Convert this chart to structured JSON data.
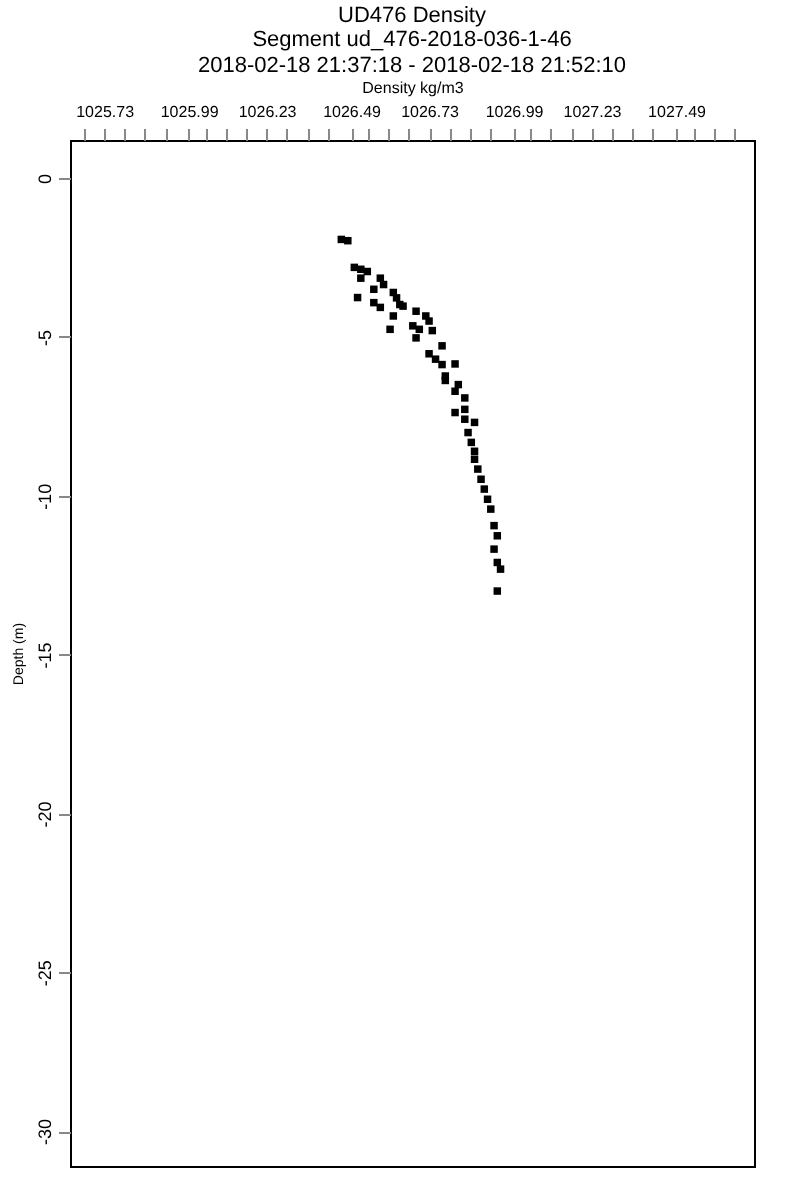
{
  "chart_data": {
    "type": "scatter",
    "title": "UD476 Density",
    "subtitle": "Segment ud_476-2018-036-1-46\n2018-02-18 21:37:18 - 2018-02-18 21:52:10",
    "xlabel": "Density kg/m3",
    "ylabel": "Depth (m)",
    "x": [
      1026.46,
      1026.48,
      1026.5,
      1026.52,
      1026.54,
      1026.52,
      1026.58,
      1026.56,
      1026.59,
      1026.51,
      1026.56,
      1026.58,
      1026.62,
      1026.63,
      1026.64,
      1026.65,
      1026.62,
      1026.61,
      1026.69,
      1026.72,
      1026.73,
      1026.68,
      1026.7,
      1026.74,
      1026.69,
      1026.77,
      1026.73,
      1026.75,
      1026.77,
      1026.81,
      1026.78,
      1026.78,
      1026.82,
      1026.81,
      1026.84,
      1026.81,
      1026.84,
      1026.84,
      1026.87,
      1026.85,
      1026.86,
      1026.87,
      1026.87,
      1026.88,
      1026.89,
      1026.9,
      1026.91,
      1026.92,
      1026.93,
      1026.94,
      1026.93,
      1026.94,
      1026.95,
      1026.94
    ],
    "series": [
      {
        "color": "#000000",
        "values": [
          -1.93,
          -1.97,
          -2.81,
          -2.87,
          -2.94,
          -3.15,
          -3.15,
          -3.5,
          -3.35,
          -3.76,
          -3.92,
          -4.07,
          -3.6,
          -3.77,
          -3.98,
          -4.03,
          -4.34,
          -4.76,
          -4.19,
          -4.34,
          -4.5,
          -4.65,
          -4.76,
          -4.8,
          -5.03,
          -5.28,
          -5.53,
          -5.7,
          -5.87,
          -5.85,
          -6.23,
          -6.37,
          -6.5,
          -6.71,
          -6.92,
          -7.38,
          -7.28,
          -7.59,
          -7.69,
          -8.01,
          -8.32,
          -8.6,
          -8.85,
          -9.16,
          -9.48,
          -9.79,
          -10.11,
          -10.42,
          -10.94,
          -11.26,
          -11.68,
          -12.1,
          -12.31,
          -13.0
        ]
      }
    ],
    "xlim": [
      1025.625,
      1027.73
    ],
    "xticks": [
      {
        "value": 1025.6675,
        "label": null
      },
      1025.73,
      {
        "value": 1025.7925,
        "label": null
      },
      {
        "value": 1025.855,
        "label": null
      },
      {
        "value": 1025.9175,
        "label": null
      },
      1025.99,
      {
        "value": 1026.0425,
        "label": null
      },
      {
        "value": 1026.105,
        "label": null
      },
      {
        "value": 1026.1675,
        "label": null
      },
      1026.23,
      {
        "value": 1026.2925,
        "label": null
      },
      {
        "value": 1026.355,
        "label": null
      },
      {
        "value": 1026.4175,
        "label": null
      },
      1026.49,
      {
        "value": 1026.5425,
        "label": null
      },
      {
        "value": 1026.605,
        "label": null
      },
      {
        "value": 1026.6675,
        "label": null
      },
      1026.73,
      {
        "value": 1026.7925,
        "label": null
      },
      {
        "value": 1026.855,
        "label": null
      },
      {
        "value": 1026.9175,
        "label": null
      },
      1026.99,
      {
        "value": 1027.0425,
        "label": null
      },
      {
        "value": 1027.105,
        "label": null
      },
      {
        "value": 1027.1675,
        "label": null
      },
      1027.23,
      {
        "value": 1027.2925,
        "label": null
      },
      {
        "value": 1027.355,
        "label": null
      },
      {
        "value": 1027.4175,
        "label": null
      },
      1027.49,
      {
        "value": 1027.5425,
        "label": null
      },
      {
        "value": 1027.605,
        "label": null
      },
      {
        "value": 1027.6675,
        "label": null
      }
    ],
    "ylim": [
      -31.1,
      1.2
    ],
    "yticks": [
      -30,
      -25,
      -20,
      -15,
      -10,
      -5,
      0
    ],
    "marker": "square",
    "grid": false
  }
}
